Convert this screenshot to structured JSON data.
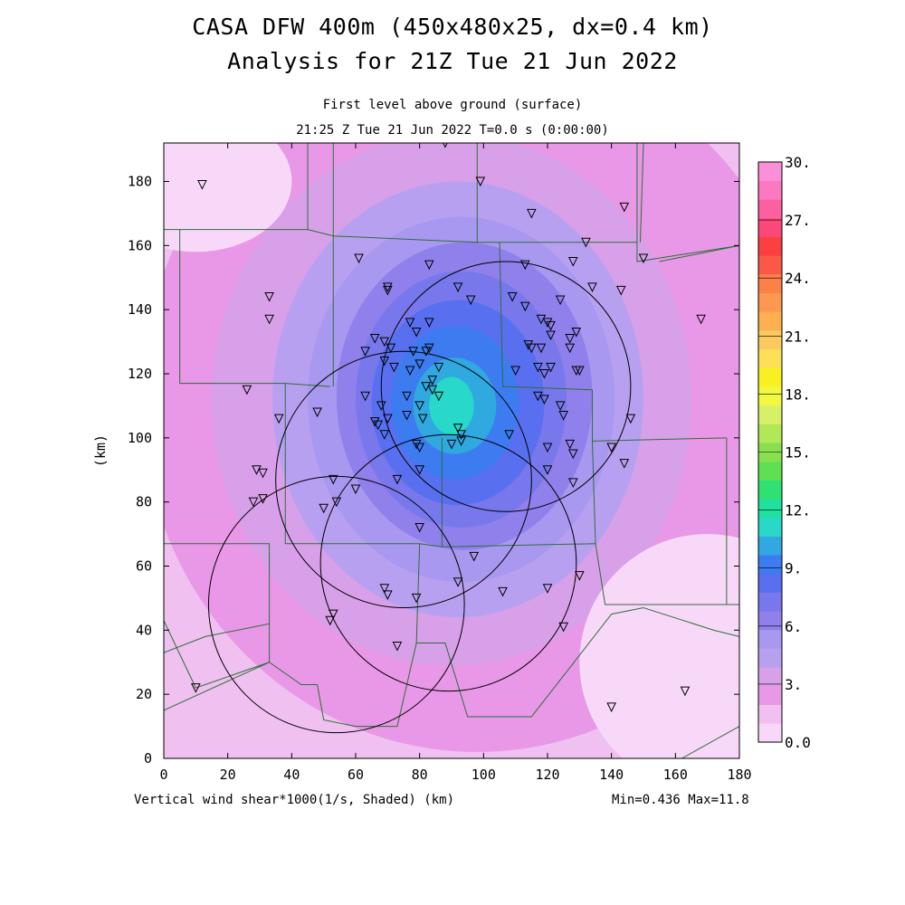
{
  "header": {
    "title_line1": "CASA DFW 400m (450x480x25, dx=0.4 km)",
    "title_line2": "Analysis for 21Z Tue 21 Jun 2022",
    "level": "First level above ground (surface)",
    "time": "21:25 Z Tue 21 Jun 2022   T=0.0 s (0:00:00)"
  },
  "footer": {
    "variable": "Vertical wind shear*1000(1/s, Shaded)  (km)",
    "minmax": "Min=0.436 Max=11.8"
  },
  "axes": {
    "y_label": "(km)",
    "x_ticks": [
      "0",
      "20",
      "40",
      "60",
      "80",
      "100",
      "120",
      "140",
      "160",
      "180"
    ],
    "y_ticks": [
      "0",
      "20",
      "40",
      "60",
      "80",
      "100",
      "120",
      "140",
      "160",
      "180"
    ],
    "x_range": [
      0,
      180
    ],
    "y_range": [
      0,
      192
    ]
  },
  "colorbar": {
    "labels": [
      "0.0",
      "3.",
      "6.",
      "9.",
      "12.",
      "15.",
      "18.",
      "21.",
      "24.",
      "27.",
      "30."
    ],
    "colors": [
      "#f8d8f8",
      "#f0c0f0",
      "#e898e6",
      "#d8a0e8",
      "#b8a0f0",
      "#a898f0",
      "#9080ec",
      "#7878ec",
      "#5870f0",
      "#3c7cf0",
      "#30a8e0",
      "#28d8c8",
      "#20e0a0",
      "#30e070",
      "#60e050",
      "#88e050",
      "#b0e858",
      "#d8f068",
      "#f0f840",
      "#f8f020",
      "#fce058",
      "#fcc860",
      "#fcb050",
      "#fc9850",
      "#fc8048",
      "#fc5848",
      "#fc4040",
      "#fc4878",
      "#fc60a0",
      "#fc78c0",
      "#fc90d8"
    ]
  },
  "chart_data": {
    "type": "heatmap",
    "field": "Vertical wind shear*1000",
    "units": "1/s",
    "min": 0.436,
    "max": 11.8,
    "value_range": [
      0,
      30
    ],
    "max_center_km": [
      90,
      110
    ],
    "radar_circles_km": [
      {
        "cx": 107,
        "cy": 116,
        "r": 39
      },
      {
        "cx": 75,
        "cy": 87,
        "r": 40
      },
      {
        "cx": 89,
        "cy": 61,
        "r": 40
      },
      {
        "cx": 54,
        "cy": 48,
        "r": 40
      }
    ],
    "stations_km": [
      [
        12,
        179
      ],
      [
        88,
        192
      ],
      [
        99,
        180
      ],
      [
        115,
        170
      ],
      [
        144,
        172
      ],
      [
        150,
        156
      ],
      [
        168,
        137
      ],
      [
        61,
        156
      ],
      [
        33,
        144
      ],
      [
        33,
        137
      ],
      [
        70,
        147
      ],
      [
        70,
        146
      ],
      [
        83,
        154
      ],
      [
        92,
        147
      ],
      [
        96,
        143
      ],
      [
        77,
        136
      ],
      [
        79,
        133
      ],
      [
        83,
        136
      ],
      [
        66,
        131
      ],
      [
        63,
        127
      ],
      [
        69,
        130
      ],
      [
        69,
        124
      ],
      [
        71,
        128
      ],
      [
        78,
        127
      ],
      [
        83,
        128
      ],
      [
        82,
        127
      ],
      [
        72,
        122
      ],
      [
        77,
        121
      ],
      [
        80,
        123
      ],
      [
        84,
        118
      ],
      [
        86,
        122
      ],
      [
        82,
        116
      ],
      [
        76,
        113
      ],
      [
        80,
        110
      ],
      [
        84,
        115
      ],
      [
        86,
        113
      ],
      [
        63,
        113
      ],
      [
        68,
        110
      ],
      [
        66,
        105
      ],
      [
        70,
        106
      ],
      [
        67,
        104
      ],
      [
        69,
        101
      ],
      [
        76,
        107
      ],
      [
        81,
        106
      ],
      [
        92,
        103
      ],
      [
        93,
        101
      ],
      [
        93,
        99
      ],
      [
        79,
        98
      ],
      [
        80,
        97
      ],
      [
        90,
        98
      ],
      [
        80,
        90
      ],
      [
        73,
        87
      ],
      [
        60,
        84
      ],
      [
        53,
        87
      ],
      [
        54,
        80
      ],
      [
        50,
        78
      ],
      [
        31,
        81
      ],
      [
        28,
        80
      ],
      [
        29,
        90
      ],
      [
        31,
        89
      ],
      [
        26,
        115
      ],
      [
        36,
        106
      ],
      [
        48,
        108
      ],
      [
        80,
        72
      ],
      [
        97,
        63
      ],
      [
        106,
        52
      ],
      [
        92,
        55
      ],
      [
        69,
        53
      ],
      [
        70,
        51
      ],
      [
        79,
        50
      ],
      [
        53,
        45
      ],
      [
        52,
        43
      ],
      [
        73,
        35
      ],
      [
        120,
        53
      ],
      [
        130,
        57
      ],
      [
        125,
        41
      ],
      [
        140,
        16
      ],
      [
        163,
        21
      ],
      [
        10,
        22
      ],
      [
        113,
        154
      ],
      [
        109,
        144
      ],
      [
        113,
        141
      ],
      [
        118,
        137
      ],
      [
        120,
        136
      ],
      [
        121,
        135
      ],
      [
        124,
        143
      ],
      [
        128,
        155
      ],
      [
        132,
        161
      ],
      [
        134,
        147
      ],
      [
        143,
        146
      ],
      [
        121,
        132
      ],
      [
        127,
        131
      ],
      [
        129,
        133
      ],
      [
        127,
        128
      ],
      [
        114,
        129
      ],
      [
        115,
        128
      ],
      [
        118,
        128
      ],
      [
        117,
        122
      ],
      [
        119,
        120
      ],
      [
        121,
        122
      ],
      [
        110,
        121
      ],
      [
        129,
        121
      ],
      [
        130,
        121
      ],
      [
        119,
        112
      ],
      [
        117,
        113
      ],
      [
        124,
        110
      ],
      [
        125,
        107
      ],
      [
        108,
        101
      ],
      [
        120,
        97
      ],
      [
        127,
        98
      ],
      [
        128,
        95
      ],
      [
        144,
        92
      ],
      [
        140,
        97
      ],
      [
        146,
        106
      ],
      [
        120,
        90
      ],
      [
        128,
        86
      ]
    ]
  }
}
